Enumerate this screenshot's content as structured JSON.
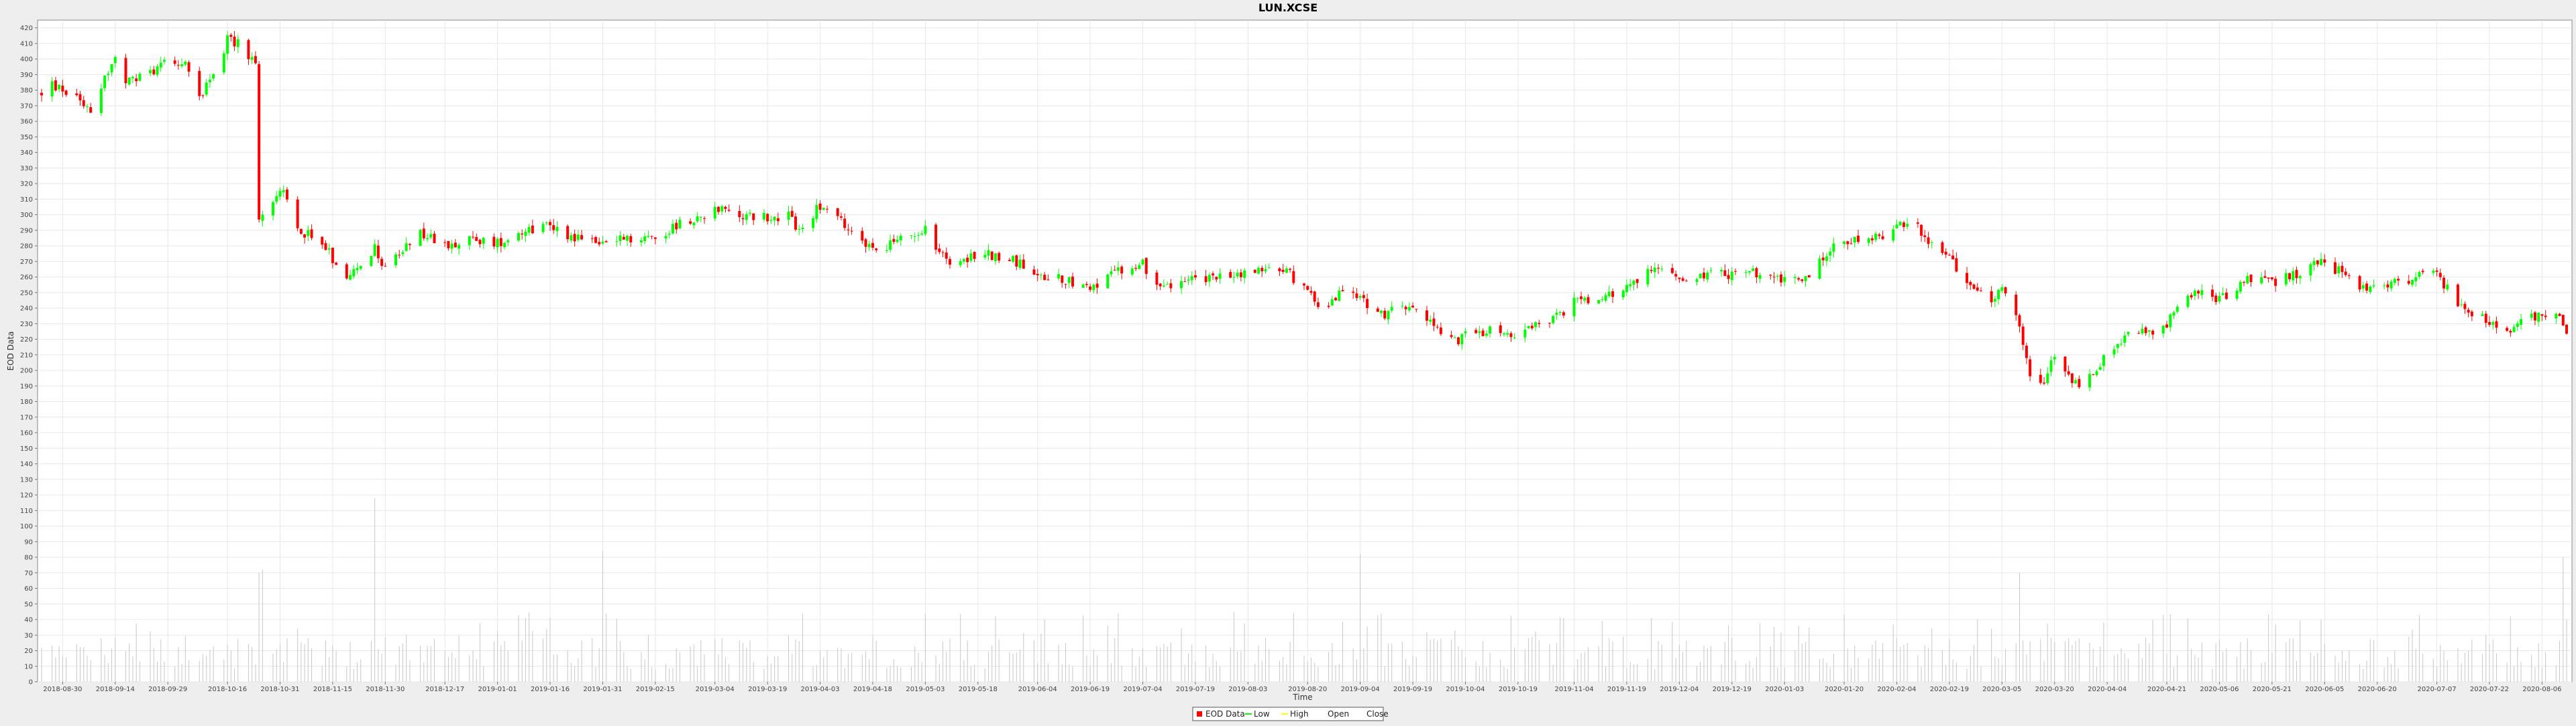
{
  "chart_data": {
    "type": "candlestick",
    "title": "LUN.XCSE",
    "xlabel": "Time",
    "ylabel": "EOD Data",
    "ylim": [
      0,
      425
    ],
    "yticks": [
      0,
      10,
      20,
      30,
      40,
      50,
      60,
      70,
      80,
      90,
      100,
      110,
      120,
      130,
      140,
      150,
      160,
      170,
      180,
      190,
      200,
      210,
      220,
      230,
      240,
      250,
      260,
      270,
      280,
      290,
      300,
      310,
      320,
      330,
      340,
      350,
      360,
      370,
      380,
      390,
      400,
      410,
      420
    ],
    "xlabels": [
      "2018-08-30",
      "2018-09-14",
      "2018-09-29",
      "2018-10-16",
      "2018-10-31",
      "2018-11-15",
      "2018-11-30",
      "2018-12-17",
      "2019-01-01",
      "2019-01-16",
      "2019-01-31",
      "2019-02-15",
      "2019-03-04",
      "2019-03-19",
      "2019-04-03",
      "2019-04-18",
      "2019-05-03",
      "2019-05-18",
      "2019-06-04",
      "2019-06-19",
      "2019-07-04",
      "2019-07-19",
      "2019-08-03",
      "2019-08-20",
      "2019-09-04",
      "2019-09-19",
      "2019-10-04",
      "2019-10-19",
      "2019-11-04",
      "2019-11-19",
      "2019-12-04",
      "2019-12-19",
      "2020-01-03",
      "2020-01-20",
      "2020-02-04",
      "2020-02-19",
      "2020-03-05",
      "2020-03-20",
      "2020-04-04",
      "2020-04-21",
      "2020-05-06",
      "2020-05-21",
      "2020-06-05",
      "2020-06-20",
      "2020-07-07",
      "2020-07-22",
      "2020-08-06"
    ],
    "xstart": "2018-08-24",
    "xend": "2020-08-13",
    "price_path": [
      [
        "2018-08-24",
        378
      ],
      [
        "2018-08-27",
        383
      ],
      [
        "2018-08-30",
        380
      ],
      [
        "2018-09-03",
        377
      ],
      [
        "2018-09-07",
        368
      ],
      [
        "2018-09-11",
        388
      ],
      [
        "2018-09-14",
        400
      ],
      [
        "2018-09-17",
        384
      ],
      [
        "2018-09-21",
        388
      ],
      [
        "2018-09-26",
        394
      ],
      [
        "2018-09-29",
        404
      ],
      [
        "2018-10-04",
        395
      ],
      [
        "2018-10-08",
        376
      ],
      [
        "2018-10-12",
        392
      ],
      [
        "2018-10-16",
        412
      ],
      [
        "2018-10-20",
        410
      ],
      [
        "2018-10-24",
        395
      ],
      [
        "2018-10-25",
        298
      ],
      [
        "2018-10-31",
        318
      ],
      [
        "2018-11-05",
        290
      ],
      [
        "2018-11-10",
        287
      ],
      [
        "2018-11-15",
        272
      ],
      [
        "2018-11-19",
        262
      ],
      [
        "2018-11-24",
        266
      ],
      [
        "2018-11-27",
        278
      ],
      [
        "2018-11-30",
        266
      ],
      [
        "2018-12-05",
        276
      ],
      [
        "2018-12-10",
        288
      ],
      [
        "2018-12-17",
        280
      ],
      [
        "2018-12-22",
        284
      ],
      [
        "2019-01-01",
        282
      ],
      [
        "2019-01-08",
        290
      ],
      [
        "2019-01-16",
        294
      ],
      [
        "2019-01-20",
        288
      ],
      [
        "2019-01-26",
        284
      ],
      [
        "2019-01-31",
        282
      ],
      [
        "2019-02-05",
        284
      ],
      [
        "2019-02-10",
        285
      ],
      [
        "2019-02-15",
        286
      ],
      [
        "2019-02-22",
        294
      ],
      [
        "2019-03-04",
        304
      ],
      [
        "2019-03-10",
        300
      ],
      [
        "2019-03-19",
        298
      ],
      [
        "2019-03-25",
        300
      ],
      [
        "2019-03-28",
        290
      ],
      [
        "2019-04-01",
        300
      ],
      [
        "2019-04-03",
        306
      ],
      [
        "2019-04-08",
        298
      ],
      [
        "2019-04-13",
        284
      ],
      [
        "2019-04-18",
        278
      ],
      [
        "2019-04-24",
        282
      ],
      [
        "2019-05-03",
        292
      ],
      [
        "2019-05-06",
        278
      ],
      [
        "2019-05-10",
        270
      ],
      [
        "2019-05-18",
        274
      ],
      [
        "2019-05-25",
        274
      ],
      [
        "2019-06-01",
        266
      ],
      [
        "2019-06-04",
        260
      ],
      [
        "2019-06-10",
        260
      ],
      [
        "2019-06-19",
        254
      ],
      [
        "2019-06-26",
        262
      ],
      [
        "2019-07-04",
        268
      ],
      [
        "2019-07-06",
        258
      ],
      [
        "2019-07-12",
        256
      ],
      [
        "2019-07-19",
        258
      ],
      [
        "2019-07-26",
        260
      ],
      [
        "2019-08-03",
        262
      ],
      [
        "2019-08-10",
        268
      ],
      [
        "2019-08-15",
        262
      ],
      [
        "2019-08-20",
        250
      ],
      [
        "2019-08-24",
        240
      ],
      [
        "2019-08-28",
        248
      ],
      [
        "2019-09-04",
        248
      ],
      [
        "2019-09-07",
        240
      ],
      [
        "2019-09-11",
        236
      ],
      [
        "2019-09-14",
        248
      ],
      [
        "2019-09-19",
        238
      ],
      [
        "2019-09-25",
        230
      ],
      [
        "2019-10-01",
        218
      ],
      [
        "2019-10-04",
        222
      ],
      [
        "2019-10-10",
        226
      ],
      [
        "2019-10-19",
        222
      ],
      [
        "2019-10-25",
        230
      ],
      [
        "2019-11-01",
        238
      ],
      [
        "2019-11-04",
        244
      ],
      [
        "2019-11-10",
        244
      ],
      [
        "2019-11-19",
        254
      ],
      [
        "2019-11-25",
        264
      ],
      [
        "2019-12-01",
        264
      ],
      [
        "2019-12-04",
        258
      ],
      [
        "2019-12-10",
        262
      ],
      [
        "2019-12-19",
        262
      ],
      [
        "2019-12-26",
        262
      ],
      [
        "2020-01-03",
        258
      ],
      [
        "2020-01-10",
        262
      ],
      [
        "2020-01-15",
        276
      ],
      [
        "2020-01-20",
        282
      ],
      [
        "2020-01-28",
        284
      ],
      [
        "2020-02-04",
        292
      ],
      [
        "2020-02-08",
        298
      ],
      [
        "2020-02-12",
        284
      ],
      [
        "2020-02-19",
        272
      ],
      [
        "2020-02-25",
        256
      ],
      [
        "2020-03-01",
        244
      ],
      [
        "2020-03-05",
        250
      ],
      [
        "2020-03-10",
        230
      ],
      [
        "2020-03-14",
        186
      ],
      [
        "2020-03-18",
        198
      ],
      [
        "2020-03-20",
        210
      ],
      [
        "2020-03-24",
        196
      ],
      [
        "2020-03-28",
        190
      ],
      [
        "2020-04-04",
        210
      ],
      [
        "2020-04-10",
        222
      ],
      [
        "2020-04-16",
        224
      ],
      [
        "2020-04-21",
        230
      ],
      [
        "2020-04-26",
        246
      ],
      [
        "2020-05-01",
        250
      ],
      [
        "2020-05-06",
        246
      ],
      [
        "2020-05-14",
        258
      ],
      [
        "2020-05-21",
        256
      ],
      [
        "2020-05-28",
        262
      ],
      [
        "2020-06-05",
        270
      ],
      [
        "2020-06-10",
        262
      ],
      [
        "2020-06-15",
        252
      ],
      [
        "2020-06-20",
        256
      ],
      [
        "2020-06-28",
        258
      ],
      [
        "2020-07-07",
        262
      ],
      [
        "2020-07-12",
        246
      ],
      [
        "2020-07-18",
        236
      ],
      [
        "2020-07-22",
        230
      ],
      [
        "2020-07-28",
        226
      ],
      [
        "2020-08-03",
        234
      ],
      [
        "2020-08-06",
        234
      ],
      [
        "2020-08-10",
        238
      ],
      [
        "2020-08-13",
        226
      ]
    ],
    "volume_range": [
      8,
      45
    ],
    "volume_spikes": [
      [
        "2018-10-25",
        70
      ],
      [
        "2018-10-26",
        72
      ],
      [
        "2018-11-27",
        118
      ],
      [
        "2019-01-31",
        84
      ],
      [
        "2019-09-04",
        82
      ],
      [
        "2020-03-10",
        70
      ],
      [
        "2020-08-12",
        80
      ]
    ],
    "series": [
      {
        "name": "EOD Data",
        "kind": "candles",
        "color": "#ff0000"
      },
      {
        "name": "Low",
        "kind": "line",
        "color": "#00ff00"
      },
      {
        "name": "High",
        "kind": "line",
        "color": "#ffff00"
      },
      {
        "name": "Open",
        "kind": "line",
        "color": "#ffffff"
      },
      {
        "name": "Close",
        "kind": "line",
        "color": "#ffffff"
      }
    ],
    "colors": {
      "up": "#00ff00",
      "down": "#ff0000",
      "volume": "#c8c8c8",
      "grid": "#e8e8e8",
      "plot_bg": "#ffffff",
      "page_bg": "#eeeeee"
    },
    "grid": true,
    "legend_position": "bottom-center"
  }
}
